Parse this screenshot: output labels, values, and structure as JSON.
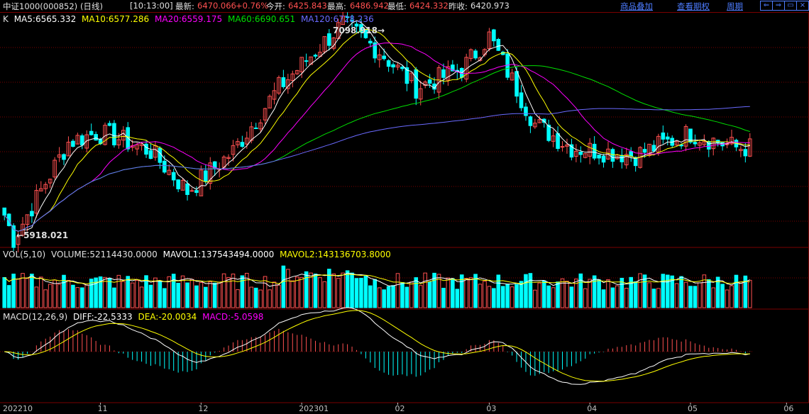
{
  "header": {
    "symbol": "中证1000(000852)",
    "period_tag": "(日线)",
    "time": "[10:13:00]",
    "latest_label": "最新:",
    "latest": "6470.066",
    "change": "+0.76%",
    "open_label": "今开:",
    "open": "6425.843",
    "high_label": "最高:",
    "high": "6486.942",
    "low_label": "最低:",
    "low": "6424.332",
    "prev_label": "昨收:",
    "prev": "6420.973",
    "nav": [
      "商品叠加",
      "查看期权",
      "周期"
    ]
  },
  "price_panel": {
    "k_label": "K",
    "ma": [
      {
        "label": "MA5:6565.332",
        "color": "#ffffff"
      },
      {
        "label": "MA10:6577.286",
        "color": "#ffff00"
      },
      {
        "label": "MA20:6559.175",
        "color": "#ff00ff"
      },
      {
        "label": "MA60:6690.651",
        "color": "#00e000"
      },
      {
        "label": "MA120:6728.236",
        "color": "#6a6aff"
      }
    ],
    "high_annotation": "7098.918",
    "low_annotation": "5918.021"
  },
  "volume_panel": {
    "label": "VOL(5,10)",
    "volume": "VOLUME:52114430.0000",
    "mavol1": "MAVOL1:137543494.0000",
    "mavol2": "MAVOL2:143136703.8000"
  },
  "macd_panel": {
    "label": "MACD(12,26,9)",
    "diff": "DIFF:-22.5333",
    "dea": "DEA:-20.0034",
    "macd": "MACD:-5.0598"
  },
  "x_axis": [
    "202210",
    "11",
    "12",
    "202301",
    "02",
    "03",
    "04",
    "05",
    "06"
  ],
  "colors": {
    "up": "#ff5050",
    "down": "#00ffff",
    "grid": "#7a0000"
  },
  "chart_data": {
    "type": "candlestick",
    "price_range": [
      5880,
      7160
    ],
    "anchors": [
      {
        "date": "202210",
        "price": 6050
      },
      {
        "date": "202210",
        "price": 5918
      },
      {
        "date": "11",
        "price": 6450
      },
      {
        "date": "11",
        "price": 6500
      },
      {
        "date": "12",
        "price": 6480
      },
      {
        "date": "12",
        "price": 6400
      },
      {
        "date": "202301",
        "price": 6180
      },
      {
        "date": "202301",
        "price": 6400
      },
      {
        "date": "02",
        "price": 6750
      },
      {
        "date": "02",
        "price": 7000
      },
      {
        "date": "02",
        "price": 7099
      },
      {
        "date": "03",
        "price": 6950
      },
      {
        "date": "03",
        "price": 6750
      },
      {
        "date": "04",
        "price": 6850
      },
      {
        "date": "04",
        "price": 7030
      },
      {
        "date": "05",
        "price": 6550
      },
      {
        "date": "05",
        "price": 6420
      },
      {
        "date": "06",
        "price": 6380
      },
      {
        "date": "06",
        "price": 6500
      },
      {
        "date": "06",
        "price": 6420
      }
    ]
  }
}
